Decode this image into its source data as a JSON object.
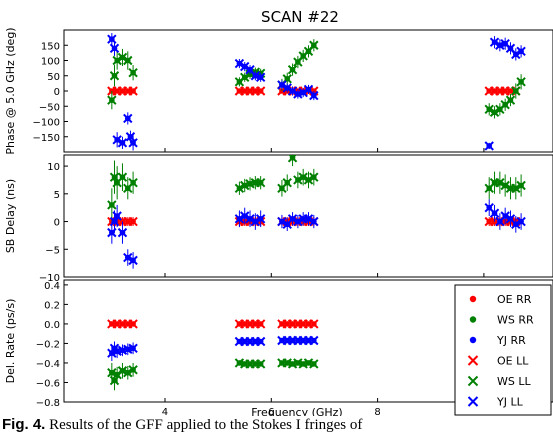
{
  "chart_data": {
    "type": "scatter",
    "title": "SCAN #22",
    "xlabel": "Frequency (GHz)",
    "xlim": [
      2.1,
      11.3
    ],
    "xticks": [
      4,
      6,
      8,
      10
    ],
    "xticklabels": [
      "4",
      "6",
      "8",
      "10"
    ],
    "legend_placement": "lower-right",
    "legend": [
      {
        "label": "OE RR",
        "marker": "dot",
        "color": "#ff0000"
      },
      {
        "label": "WS RR",
        "marker": "dot",
        "color": "#008000"
      },
      {
        "label": "YJ RR",
        "marker": "dot",
        "color": "#0000ff"
      },
      {
        "label": "OE LL",
        "marker": "x",
        "color": "#ff0000"
      },
      {
        "label": "WS LL",
        "marker": "x",
        "color": "#008000"
      },
      {
        "label": "YJ LL",
        "marker": "x",
        "color": "#0000ff"
      }
    ],
    "panels": [
      {
        "id": "phase",
        "ylabel": "Phase @ 5.0 GHz (deg)",
        "ylim": [
          -200,
          200
        ],
        "yticks": [
          150,
          100,
          50,
          0,
          -50,
          -100,
          -150
        ],
        "yticklabels": [
          "150",
          "100",
          "50",
          "0",
          "−50",
          "−100",
          "−150"
        ],
        "series": [
          {
            "label": "OE",
            "color": "#ff0000",
            "x": [
              3.0,
              3.1,
              3.2,
              3.3,
              3.4,
              5.4,
              5.5,
              5.6,
              5.7,
              5.8,
              6.2,
              6.3,
              6.4,
              6.5,
              6.6,
              6.7,
              6.8,
              10.1,
              10.2,
              10.3,
              10.4,
              10.5,
              10.6
            ],
            "y": [
              0,
              0,
              0,
              0,
              0,
              0,
              0,
              0,
              0,
              0,
              0,
              0,
              0,
              0,
              0,
              0,
              0,
              0,
              0,
              0,
              0,
              0,
              0
            ],
            "err": [
              5,
              5,
              5,
              5,
              5,
              5,
              5,
              5,
              5,
              5,
              5,
              5,
              5,
              5,
              5,
              5,
              5,
              5,
              5,
              5,
              5,
              5,
              5
            ]
          },
          {
            "label": "WS",
            "color": "#008000",
            "x": [
              3.0,
              3.05,
              3.1,
              3.2,
              3.3,
              3.4,
              5.4,
              5.5,
              5.6,
              5.7,
              5.8,
              6.2,
              6.3,
              6.4,
              6.5,
              6.6,
              6.7,
              6.8,
              10.1,
              10.2,
              10.3,
              10.4,
              10.5,
              10.6,
              10.7
            ],
            "y": [
              -30,
              50,
              100,
              110,
              100,
              60,
              30,
              45,
              55,
              62,
              58,
              20,
              40,
              70,
              95,
              115,
              130,
              150,
              -60,
              -70,
              -60,
              -45,
              -30,
              0,
              30
            ],
            "err": [
              30,
              35,
              30,
              28,
              30,
              25,
              15,
              15,
              15,
              15,
              15,
              20,
              20,
              20,
              20,
              20,
              20,
              20,
              20,
              20,
              20,
              20,
              20,
              25,
              25
            ]
          },
          {
            "label": "YJ",
            "color": "#0000ff",
            "x": [
              3.0,
              3.05,
              3.1,
              3.2,
              3.3,
              3.35,
              3.4,
              5.4,
              5.5,
              5.6,
              5.7,
              5.8,
              6.2,
              6.3,
              6.4,
              6.5,
              6.6,
              6.7,
              6.8,
              10.1,
              10.2,
              10.3,
              10.4,
              10.5,
              10.6,
              10.7
            ],
            "y": [
              170,
              140,
              -160,
              -170,
              -90,
              -150,
              -170,
              90,
              80,
              70,
              50,
              45,
              20,
              10,
              0,
              -10,
              -5,
              5,
              -15,
              -180,
              160,
              150,
              155,
              140,
              120,
              130
            ],
            "err": [
              20,
              25,
              25,
              20,
              20,
              20,
              25,
              15,
              15,
              15,
              15,
              15,
              15,
              15,
              15,
              15,
              15,
              15,
              15,
              10,
              20,
              20,
              20,
              20,
              20,
              20
            ]
          }
        ]
      },
      {
        "id": "sbdelay",
        "ylabel": "SB Delay (ns)",
        "ylim": [
          -10,
          12
        ],
        "yticks": [
          10,
          5,
          0,
          -5,
          -10
        ],
        "yticklabels": [
          "10",
          "5",
          "0",
          "−5",
          "−10"
        ],
        "series": [
          {
            "label": "OE",
            "color": "#ff0000",
            "x": [
              3.0,
              3.1,
              3.2,
              3.3,
              3.4,
              5.4,
              5.5,
              5.6,
              5.7,
              5.8,
              6.2,
              6.3,
              6.4,
              6.5,
              6.6,
              6.7,
              6.8,
              10.1,
              10.2,
              10.3,
              10.4,
              10.5,
              10.6
            ],
            "y": [
              0,
              0,
              0,
              0,
              0,
              0,
              0,
              0,
              0,
              0,
              0,
              0,
              0,
              0,
              0,
              0,
              0,
              0,
              0,
              0,
              0,
              0,
              0
            ],
            "err": [
              0.8,
              0.8,
              0.8,
              0.8,
              0.8,
              0.8,
              0.8,
              0.8,
              0.8,
              0.8,
              0.8,
              0.8,
              0.8,
              0.8,
              0.8,
              0.8,
              0.8,
              0.8,
              0.8,
              0.8,
              0.8,
              0.8,
              0.8
            ]
          },
          {
            "label": "WS",
            "color": "#008000",
            "x": [
              3.0,
              3.05,
              3.1,
              3.2,
              3.3,
              3.4,
              5.4,
              5.5,
              5.6,
              5.7,
              5.8,
              6.2,
              6.3,
              6.4,
              6.5,
              6.6,
              6.7,
              6.8,
              10.1,
              10.2,
              10.3,
              10.4,
              10.5,
              10.6,
              10.7
            ],
            "y": [
              3,
              8,
              7,
              8,
              6,
              7,
              6,
              6.5,
              6.8,
              7,
              7,
              6,
              7,
              11.5,
              7.5,
              8,
              7.5,
              8,
              6,
              7,
              7,
              6.5,
              6,
              6,
              6.5
            ],
            "err": [
              3,
              3,
              3,
              2.5,
              2,
              2,
              1.2,
              1.2,
              1.2,
              1.2,
              1.2,
              1.5,
              1.5,
              1.5,
              1.5,
              1.5,
              1.5,
              1.5,
              2,
              2,
              2,
              2,
              2,
              2,
              2
            ]
          },
          {
            "label": "YJ",
            "color": "#0000ff",
            "x": [
              3.0,
              3.05,
              3.1,
              3.2,
              3.3,
              3.4,
              5.4,
              5.5,
              5.6,
              5.7,
              5.8,
              6.2,
              6.3,
              6.4,
              6.5,
              6.6,
              6.7,
              6.8,
              10.1,
              10.2,
              10.3,
              10.4,
              10.5,
              10.6,
              10.7
            ],
            "y": [
              -2,
              0,
              1,
              -2,
              -6.5,
              -7,
              0.5,
              1,
              0.5,
              0,
              0.5,
              0,
              -0.5,
              0.5,
              0,
              0.5,
              0.5,
              0,
              2.5,
              1.5,
              0,
              1,
              0.5,
              -0.5,
              0
            ],
            "err": [
              2,
              2,
              2,
              2,
              1.5,
              1.5,
              1.5,
              1.5,
              1.5,
              1.5,
              1.5,
              1.2,
              1.2,
              1.2,
              1.2,
              1.2,
              1.2,
              1.2,
              1.5,
              1.5,
              1.5,
              1.5,
              1.5,
              1.5,
              1.5
            ]
          }
        ]
      },
      {
        "id": "delrate",
        "ylabel": "Del. Rate (ps/s)",
        "ylim": [
          -0.8,
          0.45
        ],
        "yticks": [
          0.4,
          0.2,
          0.0,
          -0.2,
          -0.4,
          -0.6,
          -0.8
        ],
        "yticklabels": [
          "0.4",
          "0.2",
          "0.0",
          "−0.2",
          "−0.4",
          "−0.6",
          "−0.8"
        ],
        "series": [
          {
            "label": "OE",
            "color": "#ff0000",
            "x": [
              3.0,
              3.1,
              3.2,
              3.3,
              3.4,
              5.4,
              5.5,
              5.6,
              5.7,
              5.8,
              6.2,
              6.3,
              6.4,
              6.5,
              6.6,
              6.7,
              6.8,
              10.1,
              10.2,
              10.3,
              10.4,
              10.5,
              10.6,
              10.7
            ],
            "y": [
              0,
              0,
              0,
              0,
              0,
              0,
              0,
              0,
              0,
              0,
              0,
              0,
              0,
              0,
              0,
              0,
              0,
              0,
              0,
              0,
              0,
              0,
              0,
              0
            ],
            "err": [
              0.01,
              0.01,
              0.01,
              0.01,
              0.01,
              0.01,
              0.01,
              0.01,
              0.01,
              0.01,
              0.01,
              0.01,
              0.01,
              0.01,
              0.01,
              0.01,
              0.01,
              0.01,
              0.01,
              0.01,
              0.01,
              0.01,
              0.01,
              0.01
            ]
          },
          {
            "label": "WS",
            "color": "#008000",
            "x": [
              3.0,
              3.05,
              3.1,
              3.2,
              3.3,
              3.4,
              5.4,
              5.5,
              5.6,
              5.7,
              5.8,
              6.2,
              6.3,
              6.4,
              6.5,
              6.6,
              6.7,
              6.8,
              10.1,
              10.2,
              10.3,
              10.4,
              10.5,
              10.6,
              10.7
            ],
            "y": [
              -0.5,
              -0.58,
              -0.52,
              -0.48,
              -0.5,
              -0.47,
              -0.4,
              -0.41,
              -0.41,
              -0.41,
              -0.41,
              -0.4,
              -0.4,
              -0.41,
              -0.4,
              -0.41,
              -0.4,
              -0.41,
              -0.4,
              -0.41,
              -0.41,
              -0.4,
              -0.41,
              -0.41,
              -0.4
            ],
            "err": [
              0.1,
              0.1,
              0.08,
              0.08,
              0.07,
              0.07,
              0.02,
              0.02,
              0.02,
              0.02,
              0.02,
              0.02,
              0.02,
              0.02,
              0.02,
              0.02,
              0.02,
              0.02,
              0.02,
              0.02,
              0.02,
              0.02,
              0.02,
              0.02,
              0.02
            ]
          },
          {
            "label": "YJ",
            "color": "#0000ff",
            "x": [
              3.0,
              3.05,
              3.1,
              3.2,
              3.3,
              3.4,
              5.4,
              5.5,
              5.6,
              5.7,
              5.8,
              6.2,
              6.3,
              6.4,
              6.5,
              6.6,
              6.7,
              6.8,
              10.1,
              10.2,
              10.3,
              10.4,
              10.5,
              10.6,
              10.7
            ],
            "y": [
              -0.3,
              -0.25,
              -0.28,
              -0.27,
              -0.26,
              -0.25,
              -0.18,
              -0.18,
              -0.18,
              -0.18,
              -0.18,
              -0.17,
              -0.17,
              -0.17,
              -0.17,
              -0.17,
              -0.17,
              -0.17,
              -0.16,
              -0.16,
              -0.16,
              -0.16,
              -0.16,
              -0.16,
              -0.16
            ],
            "err": [
              0.08,
              0.07,
              0.07,
              0.06,
              0.06,
              0.06,
              0.015,
              0.015,
              0.015,
              0.015,
              0.015,
              0.015,
              0.015,
              0.015,
              0.015,
              0.015,
              0.015,
              0.015,
              0.015,
              0.015,
              0.015,
              0.015,
              0.015,
              0.015,
              0.015
            ]
          }
        ]
      }
    ]
  },
  "caption": {
    "label": "Fig. 4.",
    "text": "Results of the GFF applied to the Stokes I fringes of"
  }
}
